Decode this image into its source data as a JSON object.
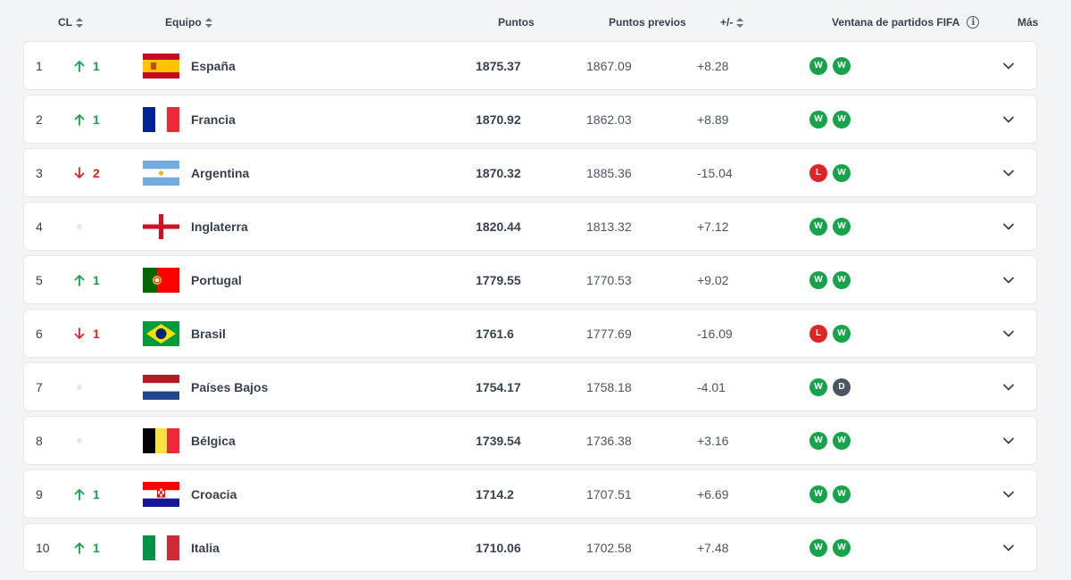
{
  "header": {
    "cl": "CL",
    "team": "Equipo",
    "points": "Puntos",
    "prev_points": "Puntos previos",
    "diff": "+/-",
    "window": "Ventana de partidos FIFA",
    "window_info": "i",
    "more": "Más"
  },
  "colors": {
    "win": "#16a34a",
    "loss": "#dc2626",
    "draw": "#4b5563",
    "up": "#16a34a",
    "down": "#dc2626"
  },
  "rows": [
    {
      "rank": "1",
      "move_dir": "up",
      "move": "1",
      "team": "España",
      "flag": "spain-flag",
      "points": "1875.37",
      "prev": "1867.09",
      "diff": "+8.28",
      "results": [
        "W",
        "W"
      ]
    },
    {
      "rank": "2",
      "move_dir": "up",
      "move": "1",
      "team": "Francia",
      "flag": "france-flag",
      "points": "1870.92",
      "prev": "1862.03",
      "diff": "+8.89",
      "results": [
        "W",
        "W"
      ]
    },
    {
      "rank": "3",
      "move_dir": "down",
      "move": "2",
      "team": "Argentina",
      "flag": "argentina-flag",
      "points": "1870.32",
      "prev": "1885.36",
      "diff": "-15.04",
      "results": [
        "L",
        "W"
      ]
    },
    {
      "rank": "4",
      "move_dir": "none",
      "move": "",
      "team": "Inglaterra",
      "flag": "england-flag",
      "points": "1820.44",
      "prev": "1813.32",
      "diff": "+7.12",
      "results": [
        "W",
        "W"
      ]
    },
    {
      "rank": "5",
      "move_dir": "up",
      "move": "1",
      "team": "Portugal",
      "flag": "portugal-flag",
      "points": "1779.55",
      "prev": "1770.53",
      "diff": "+9.02",
      "results": [
        "W",
        "W"
      ]
    },
    {
      "rank": "6",
      "move_dir": "down",
      "move": "1",
      "team": "Brasil",
      "flag": "brazil-flag",
      "points": "1761.6",
      "prev": "1777.69",
      "diff": "-16.09",
      "results": [
        "L",
        "W"
      ]
    },
    {
      "rank": "7",
      "move_dir": "none",
      "move": "",
      "team": "Países Bajos",
      "flag": "netherlands-flag",
      "points": "1754.17",
      "prev": "1758.18",
      "diff": "-4.01",
      "results": [
        "W",
        "D"
      ]
    },
    {
      "rank": "8",
      "move_dir": "none",
      "move": "",
      "team": "Bélgica",
      "flag": "belgium-flag",
      "points": "1739.54",
      "prev": "1736.38",
      "diff": "+3.16",
      "results": [
        "W",
        "W"
      ]
    },
    {
      "rank": "9",
      "move_dir": "up",
      "move": "1",
      "team": "Croacia",
      "flag": "croatia-flag",
      "points": "1714.2",
      "prev": "1707.51",
      "diff": "+6.69",
      "results": [
        "W",
        "W"
      ]
    },
    {
      "rank": "10",
      "move_dir": "up",
      "move": "1",
      "team": "Italia",
      "flag": "italy-flag",
      "points": "1710.06",
      "prev": "1702.58",
      "diff": "+7.48",
      "results": [
        "W",
        "W"
      ]
    }
  ]
}
